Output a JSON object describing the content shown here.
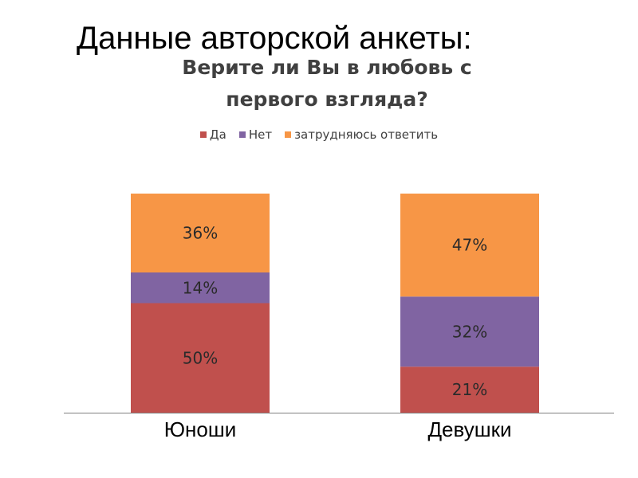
{
  "slide": {
    "title": "Данные авторской анкеты:"
  },
  "chart_data": {
    "type": "bar",
    "stacked": true,
    "title_lines": [
      "Верите ли Вы в любовь с",
      "первого взгляда?"
    ],
    "categories": [
      "Юноши",
      "Девушки"
    ],
    "series": [
      {
        "name": "Да",
        "color": "#C0504D",
        "values": [
          50,
          21
        ],
        "labels": [
          "50%",
          "21%"
        ]
      },
      {
        "name": "Нет",
        "color": "#8064A2",
        "values": [
          14,
          32
        ],
        "labels": [
          "14%",
          "32%"
        ]
      },
      {
        "name": "затрудняюсь ответить",
        "color": "#F79646",
        "values": [
          36,
          47
        ],
        "labels": [
          "36%",
          "47%"
        ]
      }
    ],
    "ylim": [
      0,
      100
    ],
    "legend_position": "top",
    "grid": false
  }
}
